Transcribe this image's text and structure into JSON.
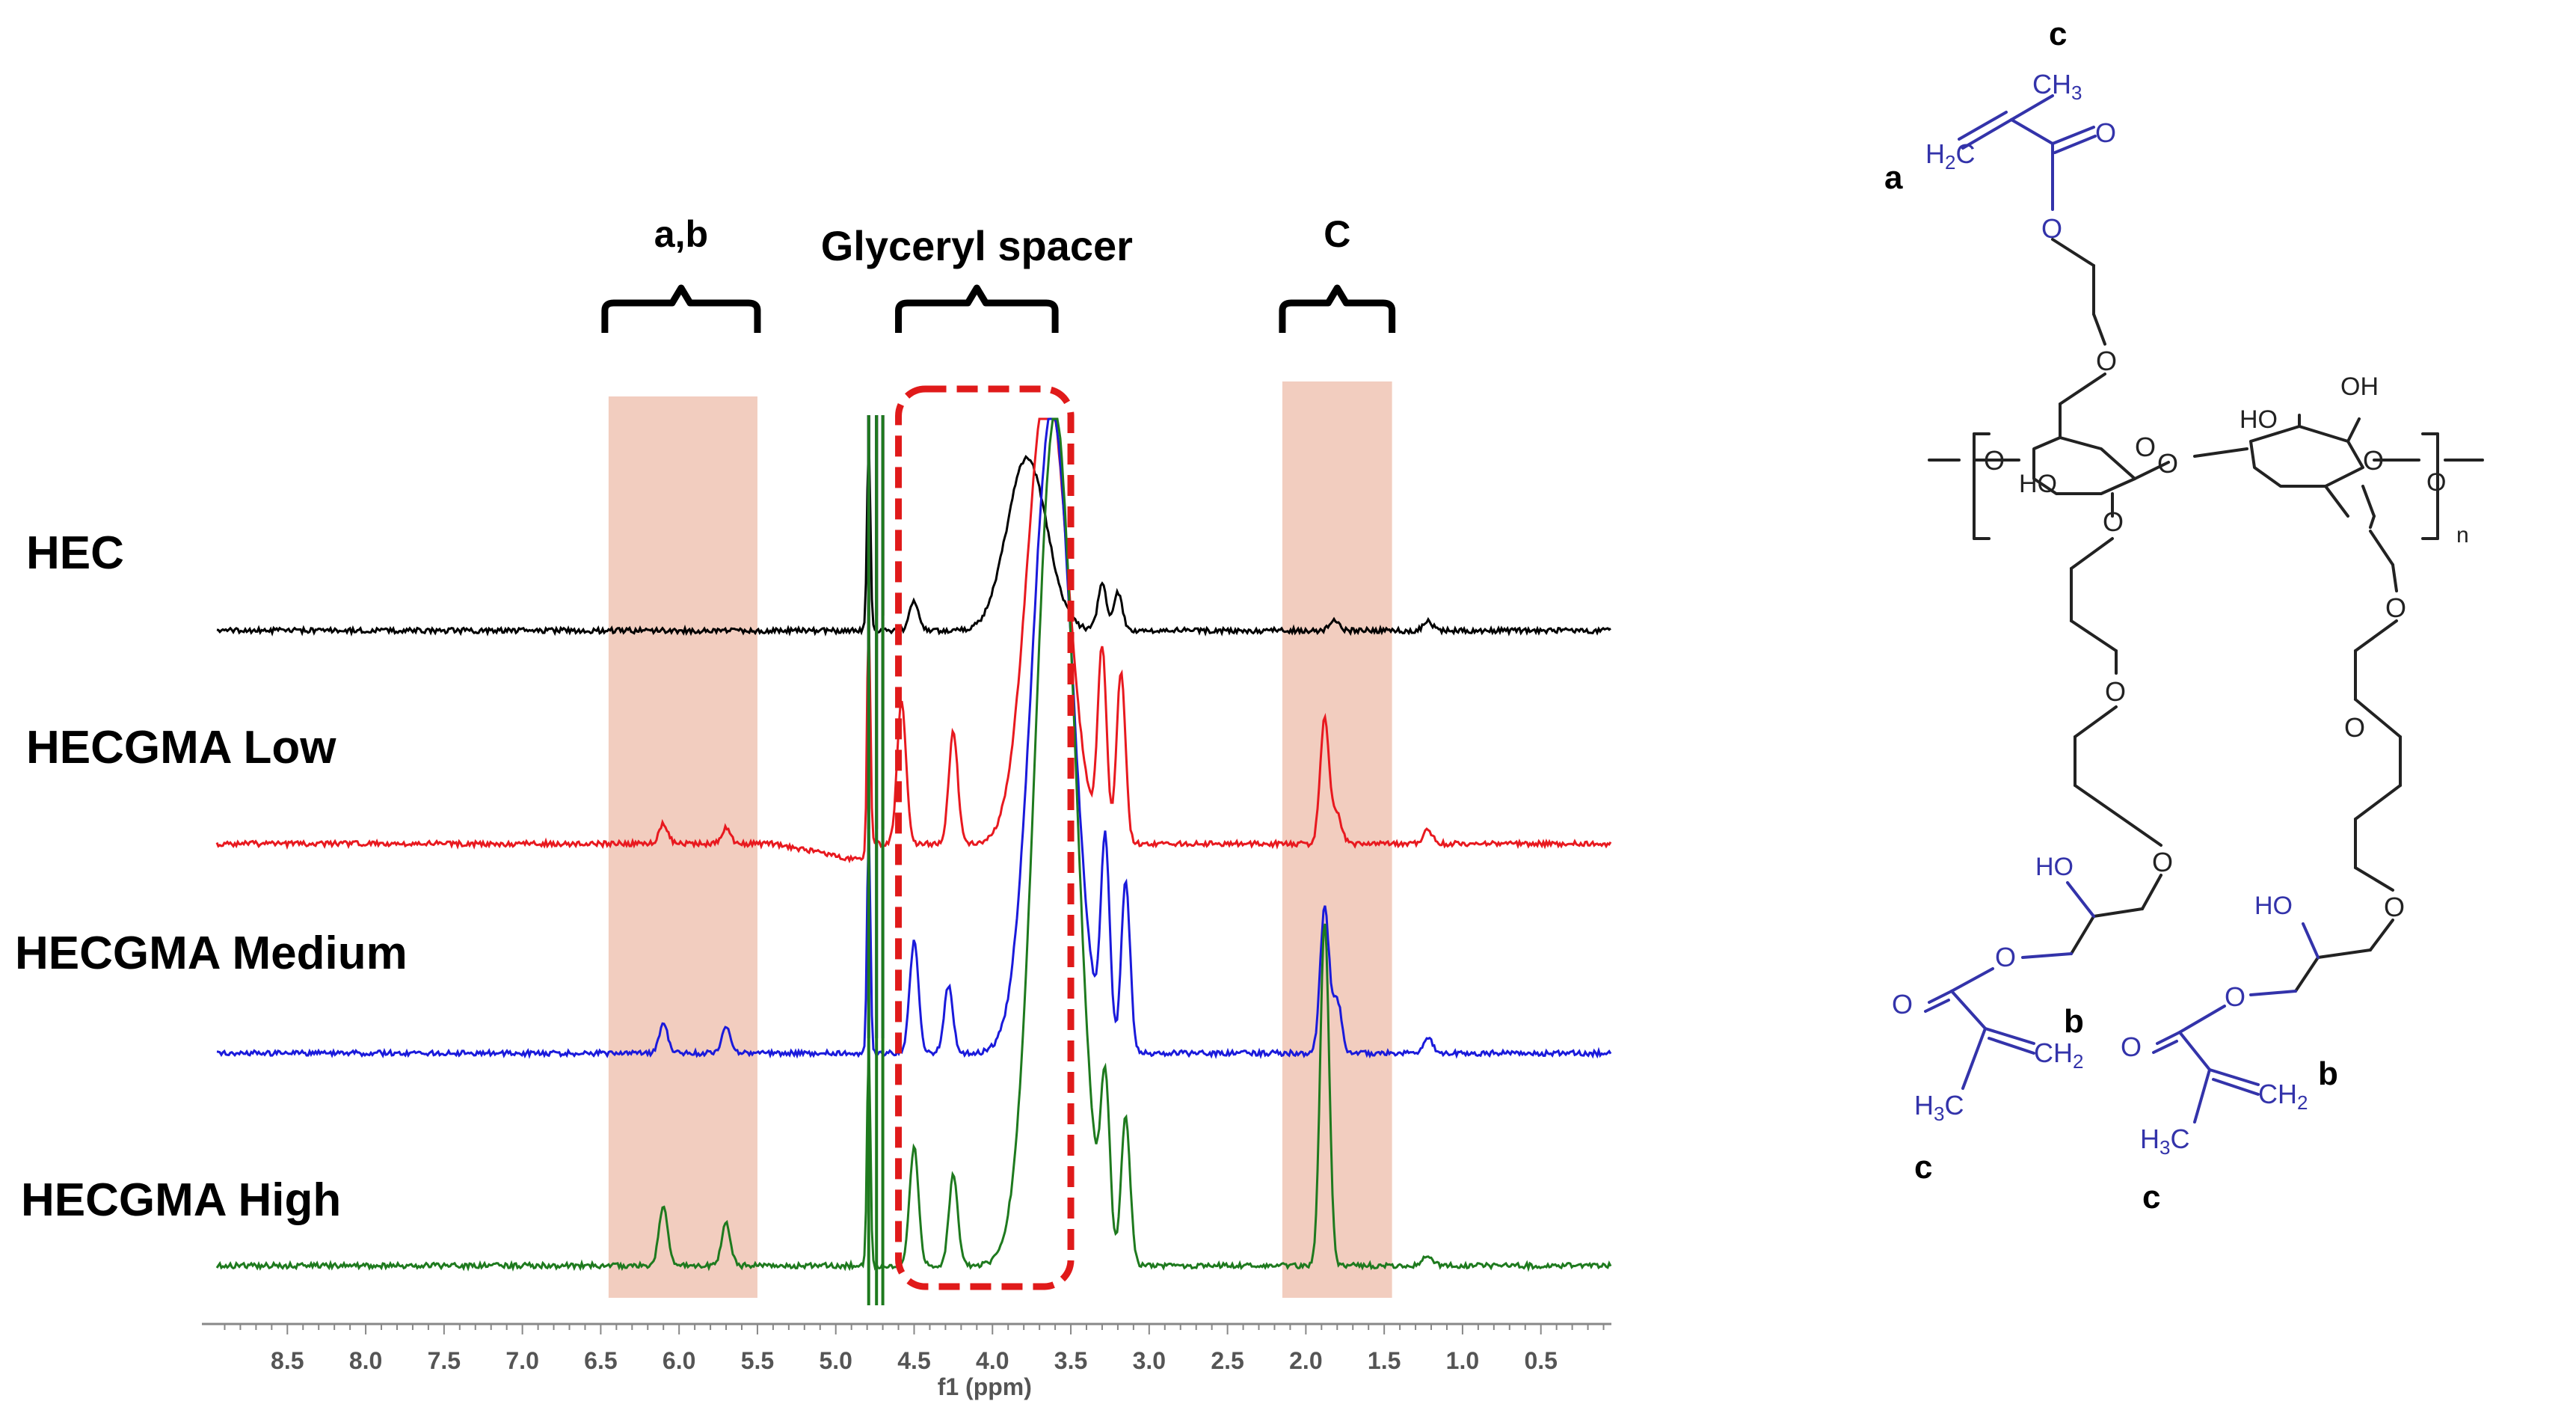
{
  "chart_data": {
    "type": "line",
    "title": "",
    "xlabel": "f1 (ppm)",
    "ylabel": "",
    "x_range": [
      8.95,
      0.05
    ],
    "x_ticks": [
      "8.5",
      "8.0",
      "7.5",
      "7.0",
      "6.5",
      "6.0",
      "5.5",
      "5.0",
      "4.5",
      "4.0",
      "3.5",
      "3.0",
      "2.5",
      "2.0",
      "1.5",
      "1.0",
      "0.5"
    ],
    "x_tick_values": [
      8.5,
      8.0,
      7.5,
      7.0,
      6.5,
      6.0,
      5.5,
      5.0,
      4.5,
      4.0,
      3.5,
      3.0,
      2.5,
      2.0,
      1.5,
      1.0,
      0.5
    ],
    "series": [
      {
        "name": "HEC",
        "color": "#000000",
        "peaks_ppm": [
          4.79,
          4.7,
          4.5,
          3.78,
          3.3,
          3.2,
          1.82,
          1.22
        ]
      },
      {
        "name": "HECGMA Low",
        "color": "#e8191f",
        "peaks_ppm": [
          6.1,
          5.7,
          4.79,
          4.7,
          4.58,
          4.25,
          3.65,
          3.3,
          3.18,
          1.88,
          1.8,
          1.22
        ]
      },
      {
        "name": "HECGMA Medium",
        "color": "#1a1adb",
        "peaks_ppm": [
          6.1,
          5.7,
          4.79,
          4.7,
          4.5,
          4.28,
          3.62,
          3.28,
          3.15,
          1.88,
          1.8,
          1.22
        ]
      },
      {
        "name": "HECGMA High",
        "color": "#1e7a1e",
        "peaks_ppm": [
          6.1,
          5.7,
          4.79,
          4.7,
          4.5,
          4.25,
          3.6,
          3.28,
          3.15,
          1.88,
          1.22
        ]
      }
    ],
    "annotations": [
      {
        "label": "a,b",
        "range_ppm": [
          6.45,
          5.5
        ]
      },
      {
        "label": "Glyceryl spacer",
        "range_ppm": [
          4.6,
          3.6
        ]
      },
      {
        "label": "C",
        "range_ppm": [
          2.15,
          1.45
        ]
      }
    ],
    "shaded_regions_ppm": [
      [
        6.45,
        5.5
      ],
      [
        2.15,
        1.45
      ]
    ],
    "dashed_box_ppm": [
      4.6,
      3.5
    ],
    "colors": {
      "shade": "#f2cdbf",
      "box": "#e01a1a",
      "structure_black": "#222222",
      "structure_blue": "#3333aa"
    }
  },
  "structure": {
    "labels": {
      "a": "a",
      "b": "b",
      "c": "c",
      "n": "n"
    },
    "groups": {
      "hydroxyl": "HO",
      "hydroxyl_right": "OH",
      "oxygen": "O",
      "methyl_upper": "CH",
      "methyl_lower": "H",
      "methylene_left": "H",
      "methylene_right": "CH",
      "carbon": "C",
      "subscript_two": "2",
      "subscript_three": "3"
    }
  }
}
